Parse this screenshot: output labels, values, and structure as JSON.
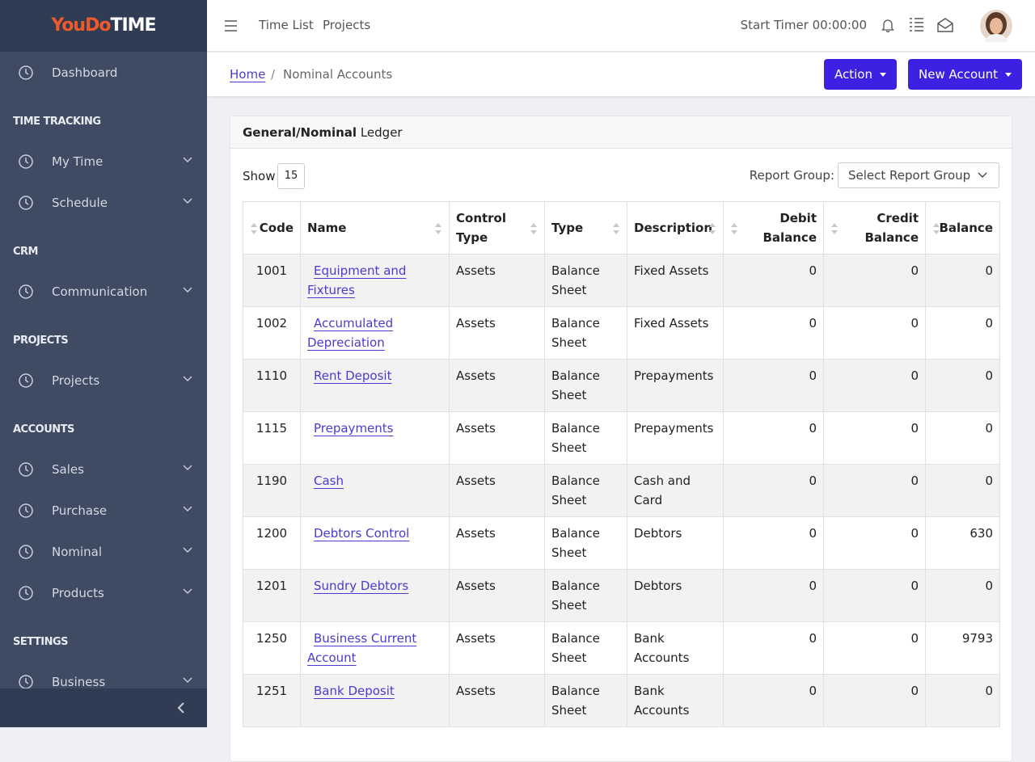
{
  "logo": {
    "part1": "YouDo",
    "part2": "TIME"
  },
  "sidebar": {
    "dashboard": "Dashboard",
    "sections": [
      {
        "title": "TIME TRACKING",
        "items": [
          "My Time",
          "Schedule"
        ]
      },
      {
        "title": "CRM",
        "items": [
          "Communication"
        ]
      },
      {
        "title": "PROJECTS",
        "items": [
          "Projects"
        ]
      },
      {
        "title": "ACCOUNTS",
        "items": [
          "Sales",
          "Purchase",
          "Nominal",
          "Products"
        ]
      },
      {
        "title": "SETTINGS",
        "items": [
          "Business"
        ]
      }
    ]
  },
  "topbar": {
    "links": [
      "Time List",
      "Projects"
    ],
    "timer": "Start Timer 00:00:00"
  },
  "breadcrumb": {
    "home": "Home",
    "separator": "/",
    "current": "Nominal Accounts"
  },
  "buttons": {
    "action": "Action",
    "new_account": "New Account"
  },
  "card": {
    "title_bold": "General/Nominal",
    "title_rest": "Ledger",
    "show_label": "Show",
    "show_value": "15",
    "report_group_label": "Report Group:",
    "report_group_placeholder": "Select Report Group"
  },
  "table": {
    "headers": [
      "Code",
      "Name",
      "Control Type",
      "Type",
      "Description",
      "Debit Balance",
      "Credit Balance",
      "Balance"
    ],
    "rows": [
      [
        "1001",
        "Equipment and Fixtures",
        "Assets",
        "Balance Sheet",
        "Fixed Assets",
        0,
        0,
        0
      ],
      [
        "1002",
        "Accumulated Depreciation",
        "Assets",
        "Balance Sheet",
        "Fixed Assets",
        0,
        0,
        0
      ],
      [
        "1110",
        "Rent Deposit",
        "Assets",
        "Balance Sheet",
        "Prepayments",
        0,
        0,
        0
      ],
      [
        "1115",
        "Prepayments",
        "Assets",
        "Balance Sheet",
        "Prepayments",
        0,
        0,
        0
      ],
      [
        "1190",
        "Cash",
        "Assets",
        "Balance Sheet",
        "Cash and Card",
        0,
        0,
        0
      ],
      [
        "1200",
        "Debtors Control",
        "Assets",
        "Balance Sheet",
        "Debtors",
        0,
        0,
        630
      ],
      [
        "1201",
        "Sundry Debtors",
        "Assets",
        "Balance Sheet",
        "Debtors",
        0,
        0,
        0
      ],
      [
        "1250",
        "Business Current Account",
        "Assets",
        "Balance Sheet",
        "Bank Accounts",
        0,
        0,
        9793
      ],
      [
        "1251",
        "Bank Deposit",
        "Assets",
        "Balance Sheet",
        "Bank Accounts",
        0,
        0,
        0
      ]
    ]
  }
}
